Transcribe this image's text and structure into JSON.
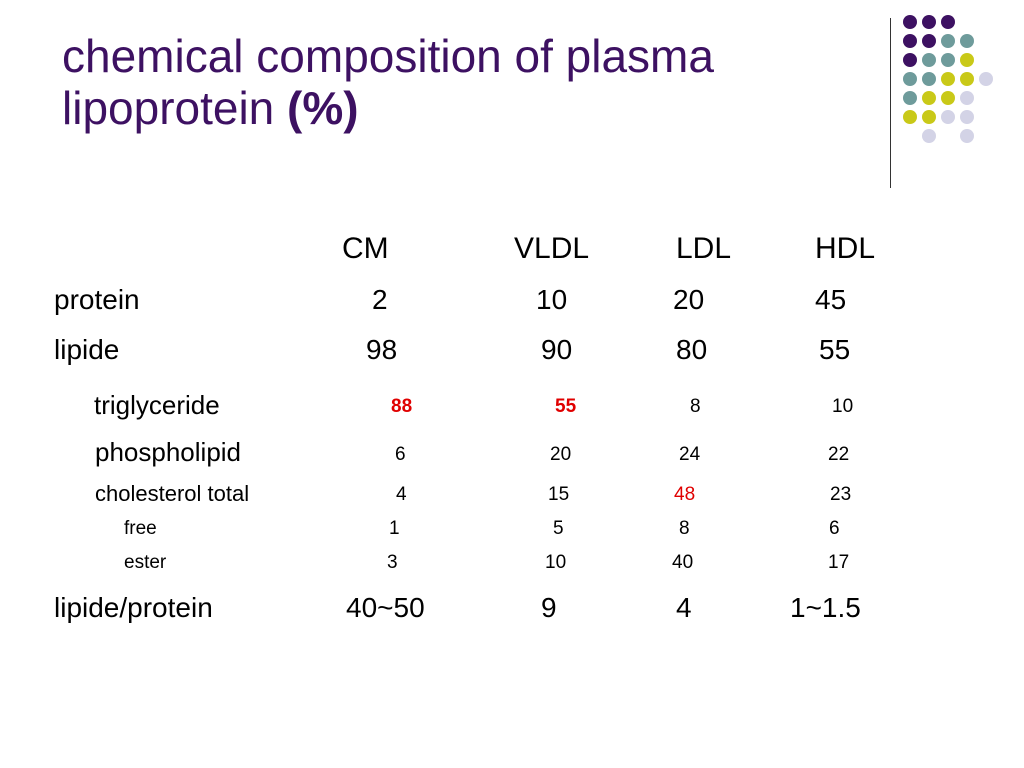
{
  "slide": {
    "title_main": "chemical composition of plasma lipoprotein",
    "title_suffix": "(%)"
  },
  "colors": {
    "title": "#3d1162",
    "highlight": "#e00000",
    "dot_purple": "#3d1162",
    "dot_teal": "#6e9b9b",
    "dot_yellow": "#c9c918",
    "dot_lavender": "#d3d3e6"
  },
  "decoration": {
    "dot_grid": [
      [
        "purple",
        "purple",
        "purple",
        null,
        null
      ],
      [
        "purple",
        "purple",
        "teal",
        "teal",
        null
      ],
      [
        "purple",
        "teal",
        "teal",
        "yellow",
        null
      ],
      [
        "teal",
        "teal",
        "yellow",
        "yellow",
        "lavender"
      ],
      [
        "teal",
        "yellow",
        "yellow",
        "lavender",
        null
      ],
      [
        "yellow",
        "yellow",
        "lavender",
        "lavender",
        null
      ],
      [
        null,
        "lavender",
        null,
        "lavender",
        null
      ]
    ]
  },
  "table": {
    "columns": [
      "CM",
      "VLDL",
      "LDL",
      "HDL"
    ],
    "rows": [
      {
        "label": "protein",
        "values": [
          "2",
          "10",
          "20",
          "45"
        ],
        "highlight": [
          false,
          false,
          false,
          false
        ]
      },
      {
        "label": "lipide",
        "values": [
          "98",
          "90",
          "80",
          "55"
        ],
        "highlight": [
          false,
          false,
          false,
          false
        ]
      },
      {
        "label": "triglyceride",
        "values": [
          "88",
          "55",
          "8",
          "10"
        ],
        "highlight": [
          true,
          true,
          false,
          false
        ]
      },
      {
        "label": "phospholipid",
        "values": [
          "6",
          "20",
          "24",
          "22"
        ],
        "highlight": [
          false,
          false,
          false,
          false
        ]
      },
      {
        "label": "cholesterol total",
        "values": [
          "4",
          "15",
          "48",
          "23"
        ],
        "highlight": [
          false,
          false,
          true,
          false
        ]
      },
      {
        "label": "free",
        "values": [
          "1",
          "5",
          "8",
          "6"
        ],
        "highlight": [
          false,
          false,
          false,
          false
        ]
      },
      {
        "label": "ester",
        "values": [
          "3",
          "10",
          "40",
          "17"
        ],
        "highlight": [
          false,
          false,
          false,
          false
        ]
      },
      {
        "label": "lipide/protein",
        "values": [
          "40~50",
          "9",
          "4",
          "1~1.5"
        ],
        "highlight": [
          false,
          false,
          false,
          false
        ]
      }
    ]
  }
}
